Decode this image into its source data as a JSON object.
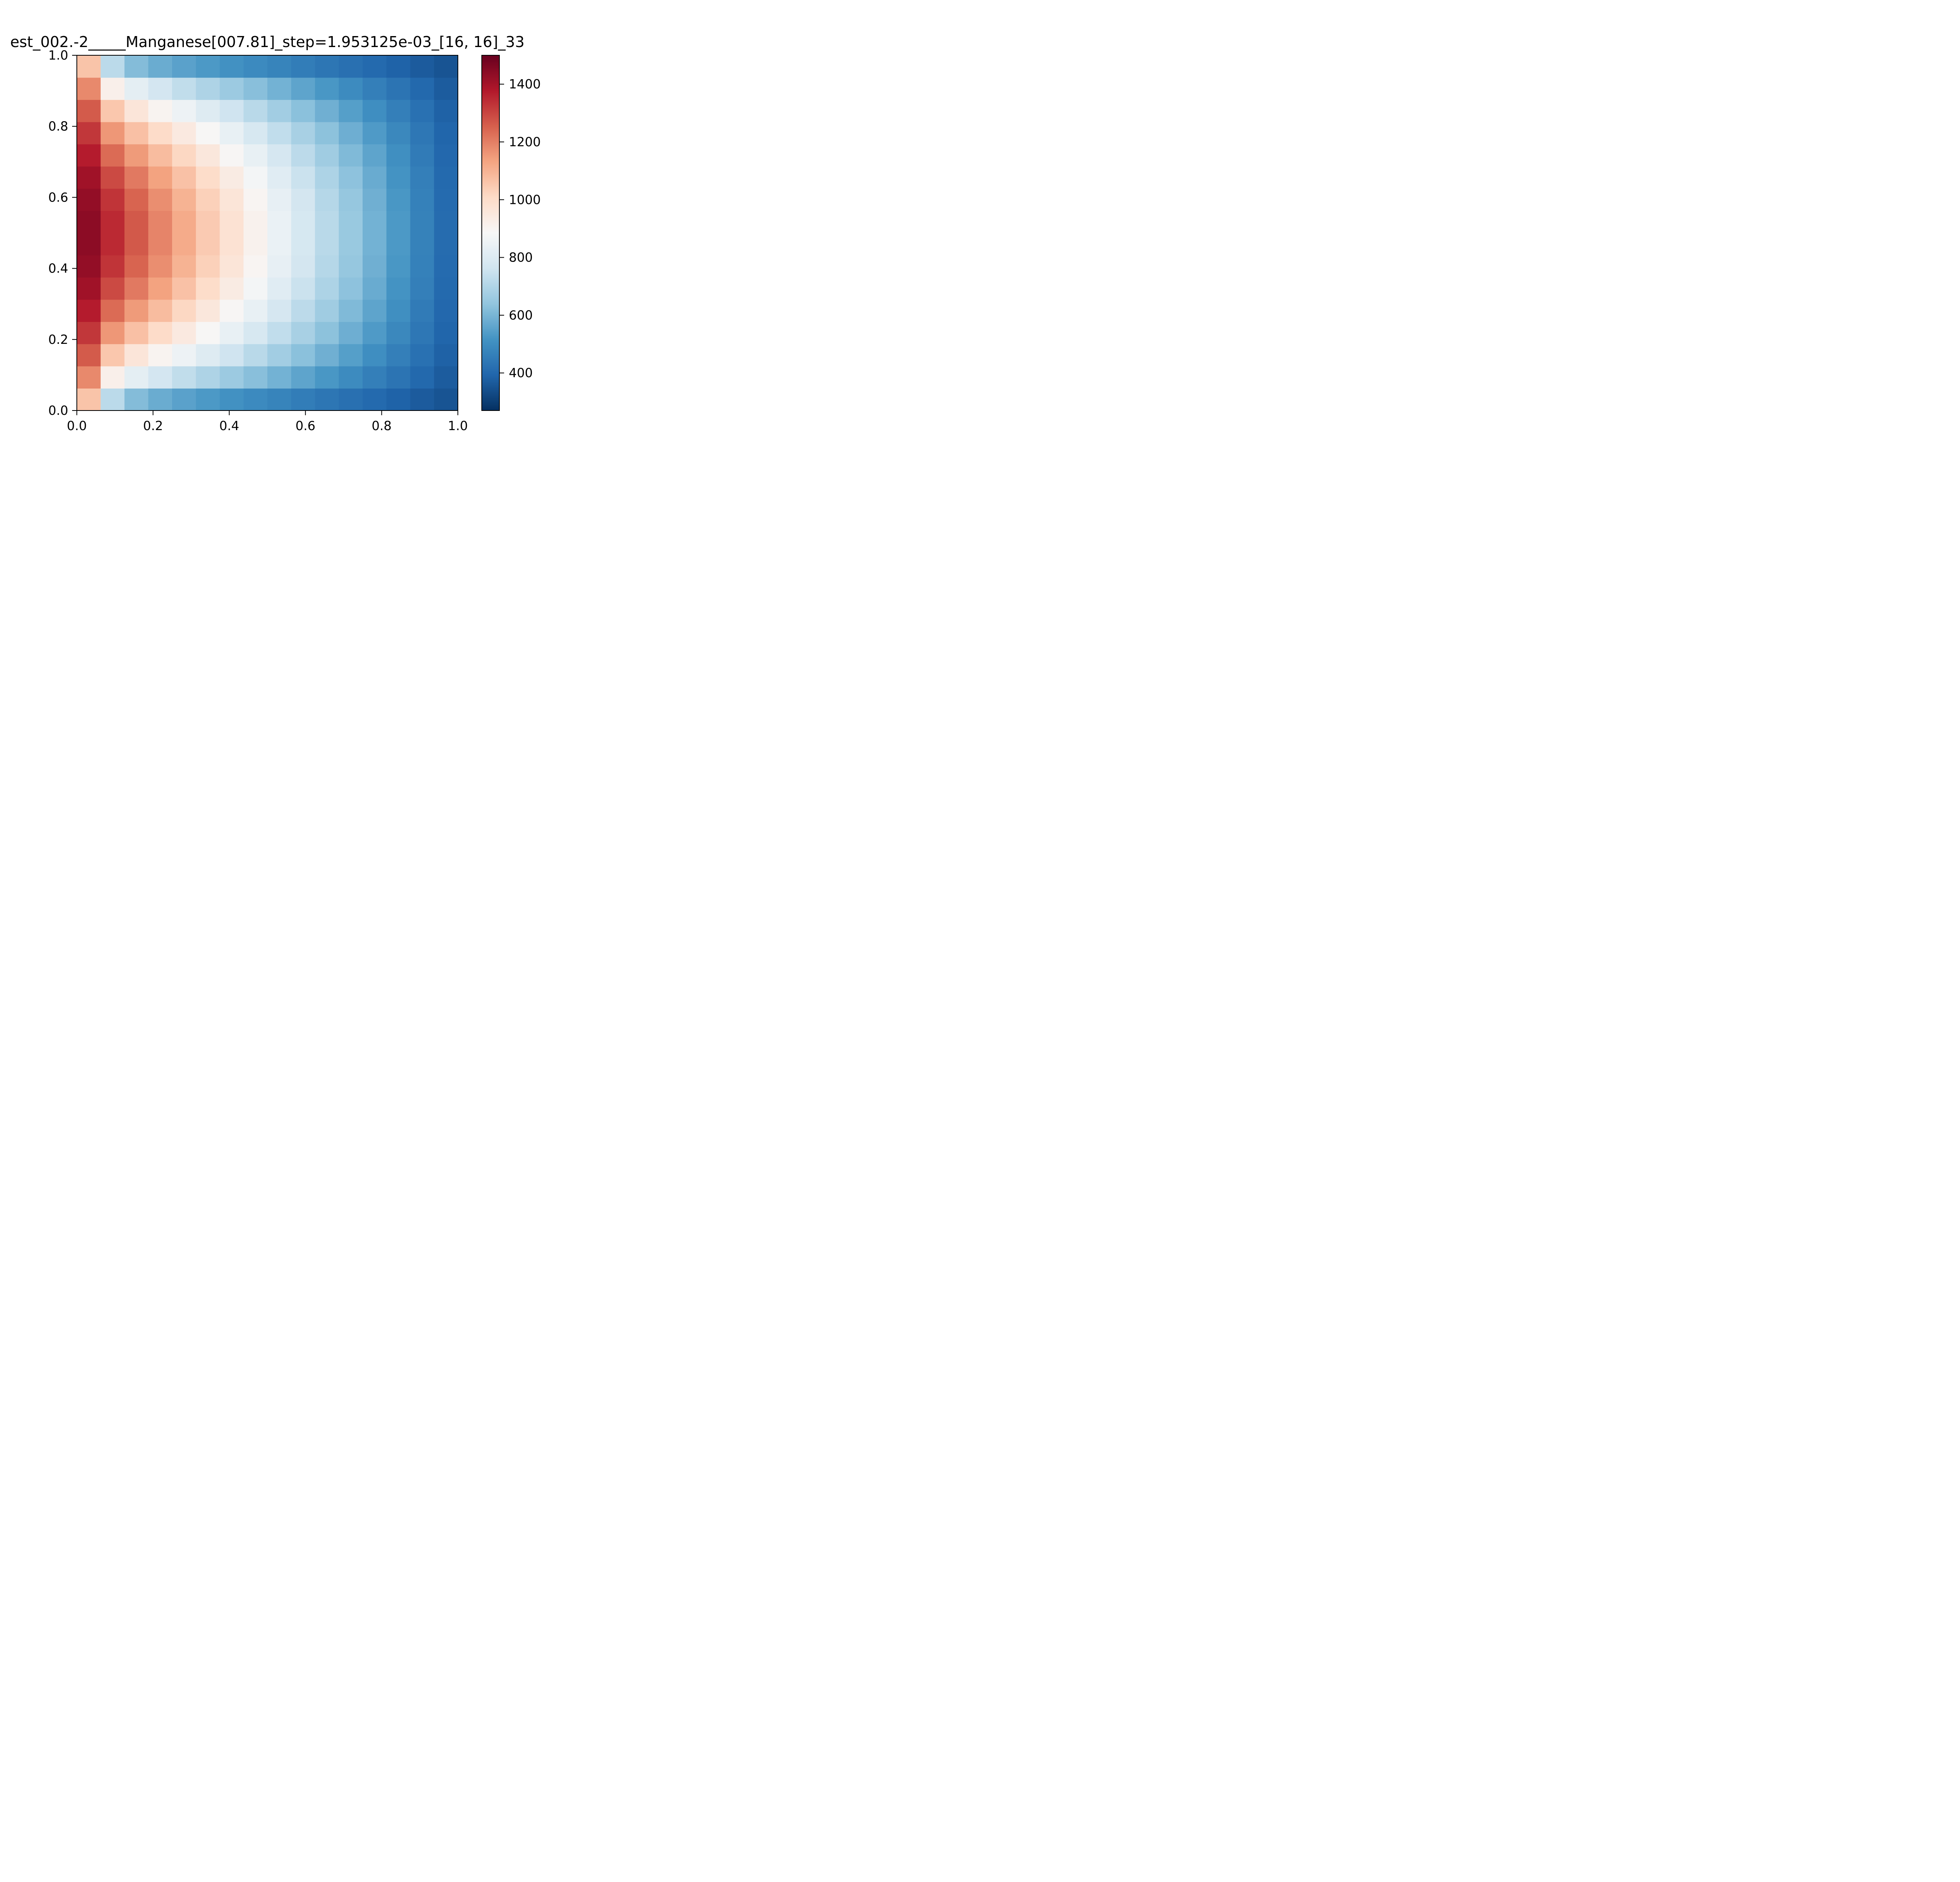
{
  "chart_data": {
    "type": "heatmap",
    "title": "est_002.-2_____Manganese[007.81]_step=1.953125e-03_[16, 16]_33",
    "xlabel": "",
    "ylabel": "",
    "xlim": [
      0.0,
      1.0
    ],
    "ylim": [
      0.0,
      1.0
    ],
    "grid": false,
    "nx": 16,
    "ny": 16,
    "colormap": "RdBu_r",
    "colorbar": {
      "vmin": 270,
      "vmax": 1500,
      "ticks": [
        400,
        600,
        800,
        1000,
        1200,
        1400
      ],
      "tick_labels": [
        "400",
        "600",
        "800",
        "1000",
        "1200",
        "1400"
      ]
    },
    "xticks": [
      0.0,
      0.2,
      0.4,
      0.6,
      0.8,
      1.0
    ],
    "xtick_labels": [
      "0.0",
      "0.2",
      "0.4",
      "0.6",
      "0.8",
      "1.0"
    ],
    "yticks": [
      0.0,
      0.2,
      0.4,
      0.6,
      0.8,
      1.0
    ],
    "ytick_labels": [
      "0.0",
      "0.2",
      "0.4",
      "0.6",
      "0.8",
      "1.0"
    ],
    "value_profile": {
      "description_rows": "bottom to top",
      "left_edge": 1500,
      "right_edge_center": 380,
      "right_edge_corner": 270
    }
  }
}
